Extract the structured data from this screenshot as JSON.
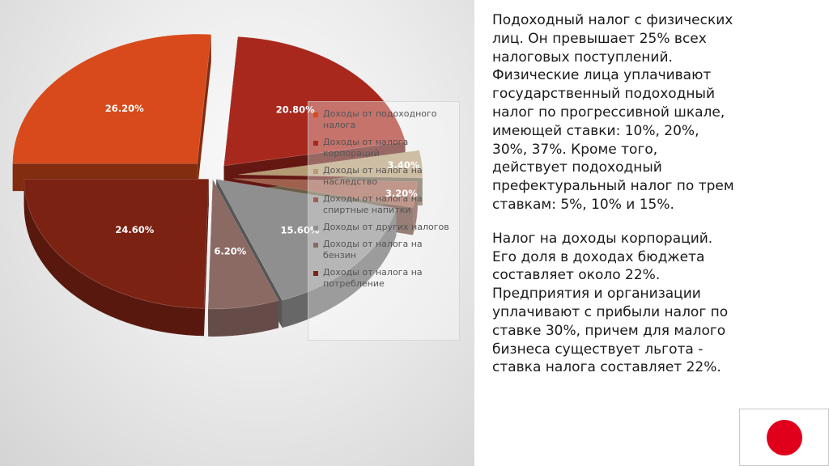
{
  "chart_data": {
    "type": "pie",
    "categories": [
      "Доходы от подоходного налога",
      "Доходы от налога корпораций",
      "Доходы от налога на наследство",
      "Доходы от налога на спиртные напитки",
      "Доходы от других налогов",
      "Доходы от налога на бензин",
      "Доходы от налога на потребление"
    ],
    "values": [
      26.2,
      20.8,
      3.4,
      3.2,
      15.6,
      6.2,
      24.6
    ],
    "value_labels": [
      "26.20%",
      "20.80%",
      "3.40%",
      "3.20%",
      "15.60%",
      "6.20%",
      "24.60%"
    ],
    "colors": [
      "#d84a1b",
      "#a8281e",
      "#b49b74",
      "#a0604e",
      "#8f8f8f",
      "#8c6a64",
      "#7b2213"
    ],
    "legend_position": "right",
    "exploded": true,
    "three_d": true
  },
  "text": {
    "paragraph1": "Подоходный налог с физических лиц. Он превышает 25% всех налоговых поступлений. Физические лица уплачивают государственный подоходный налог по прогрессивной шкале, имеющей ставки: 10%, 20%, 30%, 37%. Кроме того, действует подоходный префектуральный налог по трем ставкам: 5%, 10% и 15%.",
    "paragraph2": "Налог на доходы корпораций. Его доля в доходах бюджета составляет около 22%. Предприятия и организации уплачивают с прибыли налог по ставке 30%, причем для малого бизнеса существует льгота - ставка налога составляет 22%."
  },
  "flag": {
    "country": "Japan",
    "colors": {
      "field": "#ffffff",
      "disc": "#e0001b"
    }
  }
}
